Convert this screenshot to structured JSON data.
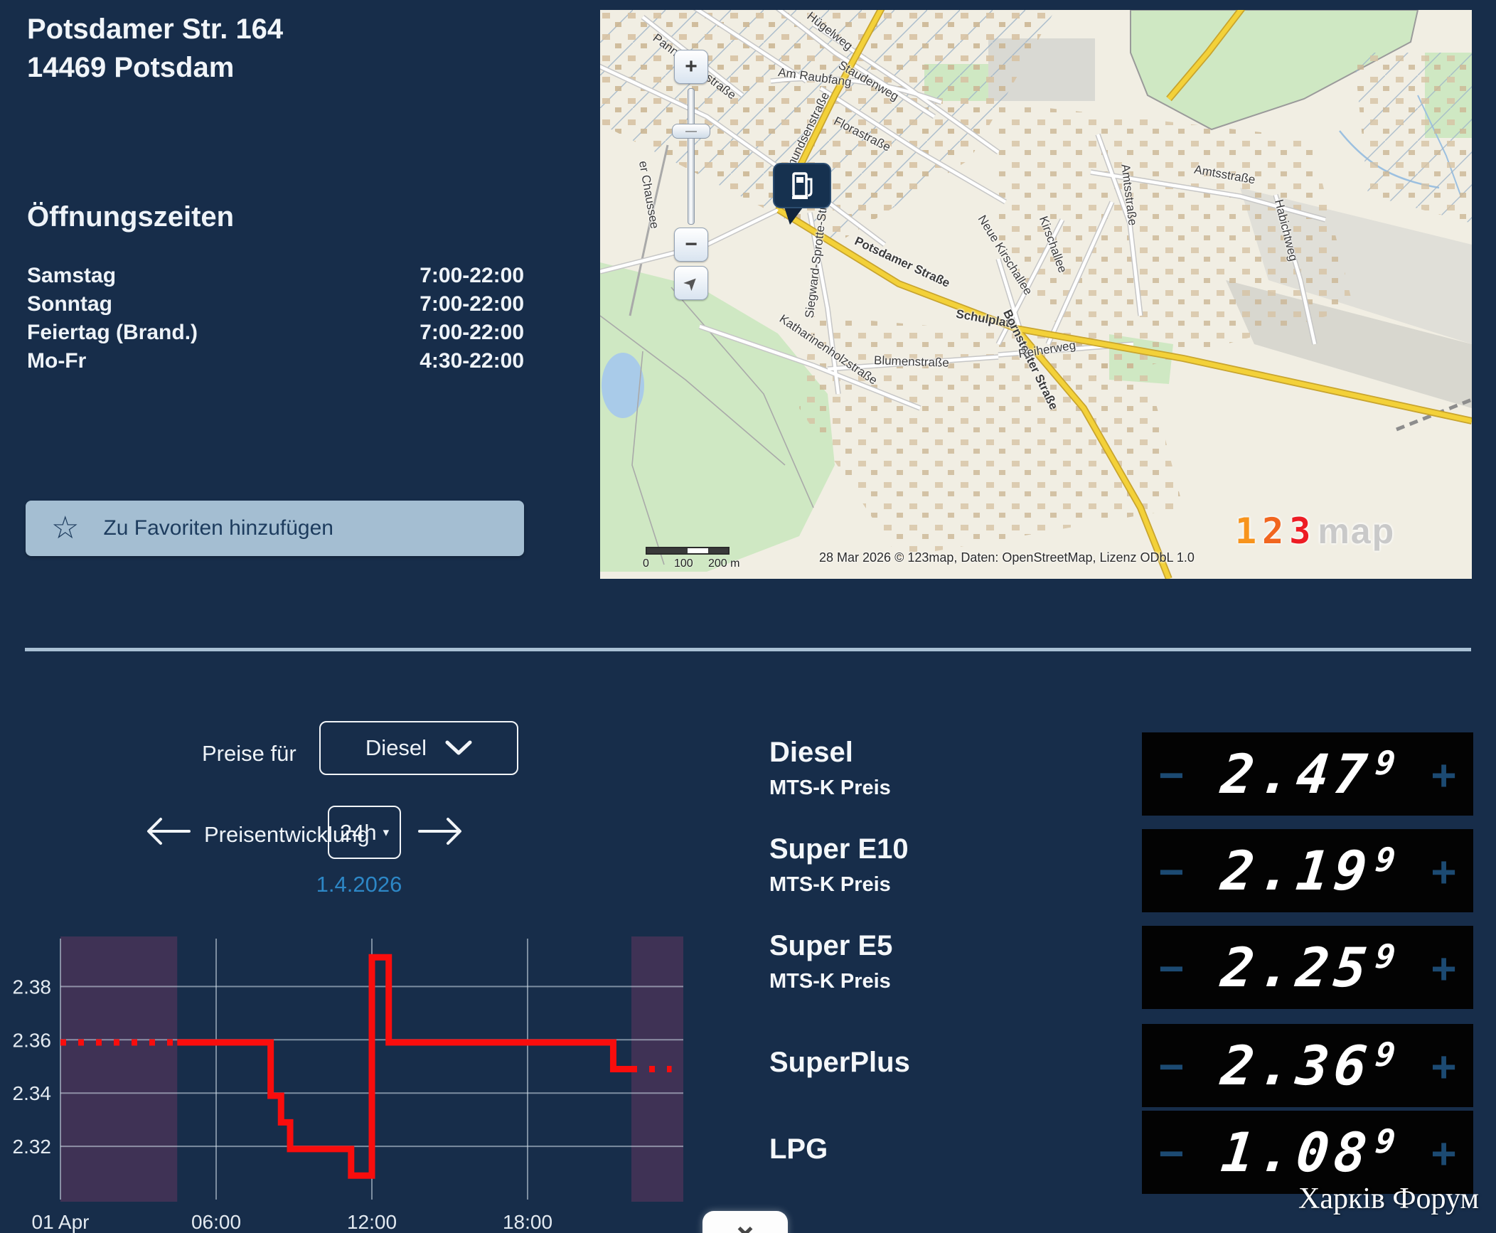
{
  "station": {
    "address_line1": "Potsdamer Str. 164",
    "address_line2": "14469 Potsdam"
  },
  "opening_hours": {
    "title": "Öffnungszeiten",
    "rows": [
      {
        "day": "Samstag",
        "time": "7:00-22:00"
      },
      {
        "day": "Sonntag",
        "time": "7:00-22:00"
      },
      {
        "day": "Feiertag (Brand.)",
        "time": "7:00-22:00"
      },
      {
        "day": "Mo-Fr",
        "time": "4:30-22:00"
      }
    ]
  },
  "favorites_button": {
    "label": "Zu Favoriten hinzufügen"
  },
  "icons": {
    "star": "☆",
    "zoom_in": "+",
    "zoom_out": "−",
    "locate": "➤",
    "slider_grip": "—",
    "minus": "−",
    "plus": "+",
    "caret_down": "▾",
    "collapse_chevron": "⌄"
  },
  "map": {
    "attribution": "28 Mar 2026 © 123map, Daten: OpenStreetMap, Lizenz ODbL 1.0",
    "scale": {
      "zero": "0",
      "mid": "100",
      "end": "200 m"
    },
    "logo": {
      "d1": "1",
      "d2": "2",
      "d3": "3",
      "text": "map"
    },
    "streets": [
      "Hügelweg",
      "Pannenbergstraße",
      "Staudenweg",
      "Florastraße",
      "Am Raubfang",
      "Amundsenstraße",
      "Amtsstraße",
      "Amtsstraße",
      "Habichtweg",
      "er Chaussee",
      "Siegward-Sprotte-Straße",
      "Potsdamer Straße",
      "Schulplatz",
      "Bornstedter Straße",
      "Katharinenholzstraße",
      "Blumenstraße",
      "Reiherweg",
      "Neue Kirschallee",
      "Kirschallee"
    ]
  },
  "price_controls": {
    "prices_for_label": "Preise für",
    "fuel_select_value": "Diesel",
    "history_label": "Preisentwicklung",
    "range_select_value": "24h",
    "date": "1.4.2026"
  },
  "fuels": [
    {
      "name": "Diesel",
      "sub": "MTS-K Preis",
      "price": "2.47",
      "sup": "9"
    },
    {
      "name": "Super E10",
      "sub": "MTS-K Preis",
      "price": "2.19",
      "sup": "9"
    },
    {
      "name": "Super E5",
      "sub": "MTS-K Preis",
      "price": "2.25",
      "sup": "9"
    },
    {
      "name": "SuperPlus",
      "sub": "",
      "price": "2.36",
      "sup": "9"
    },
    {
      "name": "LPG",
      "sub": "",
      "price": "1.08",
      "sup": "9"
    }
  ],
  "watermark": "Харків Форум",
  "colors": {
    "background": "#172d4a",
    "accent_light": "#a4bed2",
    "date_blue": "#2d87c6",
    "chart_line": "#f90d0d",
    "closed_band": "rgba(155,62,113,0.30)",
    "panel_black": "#030303",
    "plus_minus": "#1c4a72",
    "map_yellow_road": "#f3d139"
  },
  "chart_data": {
    "type": "line",
    "title": "Preisentwicklung Diesel 24h",
    "xlabel": "",
    "ylabel": "",
    "x_unit": "hours",
    "xlim": [
      0,
      24
    ],
    "ylim": [
      2.3,
      2.398
    ],
    "grid": true,
    "line_color": "#f90d0d",
    "band_color": "rgba(155,62,113,0.30)",
    "grid_color": "rgba(210,222,233,0.55)",
    "x_ticks": [
      {
        "t": 0,
        "label": "01 Apr"
      },
      {
        "t": 6,
        "label": "06:00"
      },
      {
        "t": 12,
        "label": "12:00"
      },
      {
        "t": 18,
        "label": "18:00"
      }
    ],
    "y_ticks": [
      2.32,
      2.34,
      2.36,
      2.38
    ],
    "closed_bands": [
      [
        0,
        4.5
      ],
      [
        22,
        24
      ]
    ],
    "steps": [
      {
        "t": 0,
        "price": 2.359,
        "style": "dotted"
      },
      {
        "t": 4.5,
        "price": 2.359,
        "style": "solid"
      },
      {
        "t": 8.1,
        "price": 2.339,
        "style": "solid"
      },
      {
        "t": 8.5,
        "price": 2.329,
        "style": "solid"
      },
      {
        "t": 8.85,
        "price": 2.319,
        "style": "solid"
      },
      {
        "t": 11.2,
        "price": 2.309,
        "style": "solid"
      },
      {
        "t": 12.0,
        "price": 2.391,
        "style": "solid"
      },
      {
        "t": 12.65,
        "price": 2.359,
        "style": "solid"
      },
      {
        "t": 21.3,
        "price": 2.349,
        "style": "solid"
      },
      {
        "t": 22.0,
        "price": 2.349,
        "style": "dotted"
      },
      {
        "t": 23.55,
        "price": 2.349,
        "style": "end"
      }
    ]
  }
}
